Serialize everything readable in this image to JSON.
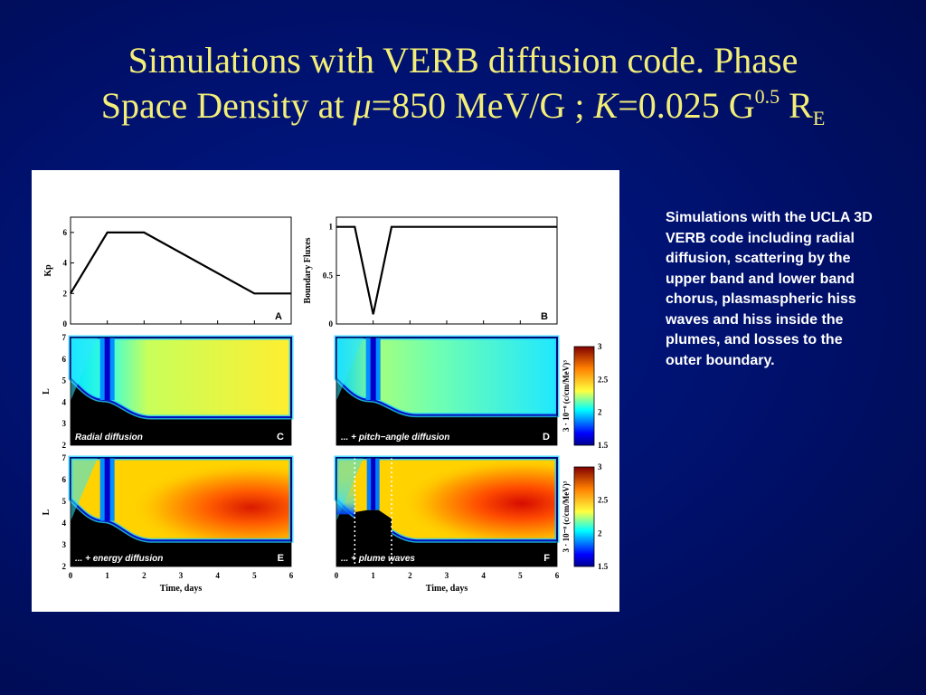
{
  "slide": {
    "title_line1": "Simulations with VERB diffusion code. Phase",
    "title_line2_pre": "Space Density  at ",
    "title_mu": "μ",
    "title_mid": "=850 MeV/G ; ",
    "title_k": "K",
    "title_post": "=0.025 G",
    "title_sup": "0.5",
    "title_r": " R",
    "title_sub": "E",
    "caption": "Simulations with the UCLA 3D VERB code including radial diffusion, scattering by the upper band and lower band chorus, plasmaspheric hiss waves and hiss inside the plumes, and losses to the outer boundary."
  },
  "chart_data": [
    {
      "id": "A",
      "type": "line",
      "panel_label": "A",
      "ylabel": "Kp",
      "xlim": [
        0,
        6
      ],
      "ylim": [
        0,
        7
      ],
      "yticks": [
        "0",
        "2",
        "4",
        "6"
      ],
      "x": [
        0,
        1,
        2,
        5,
        6
      ],
      "y": [
        2,
        6,
        6,
        2,
        2
      ]
    },
    {
      "id": "B",
      "type": "line",
      "panel_label": "B",
      "ylabel": "Boundary Fluxes",
      "xlim": [
        0,
        6
      ],
      "ylim": [
        0,
        1.1
      ],
      "yticks": [
        "0",
        "0.5",
        "1"
      ],
      "x": [
        0,
        0.5,
        1,
        1.5,
        6
      ],
      "y": [
        1,
        1,
        0.1,
        1,
        1
      ]
    },
    {
      "id": "C",
      "type": "heatmap",
      "panel_label": "C",
      "annotation": "Radial diffusion",
      "ylabel": "L",
      "xlim": [
        0,
        6
      ],
      "ylim": [
        2,
        7
      ],
      "yticks": [
        "2",
        "3",
        "4",
        "5",
        "6",
        "7"
      ]
    },
    {
      "id": "D",
      "type": "heatmap",
      "panel_label": "D",
      "annotation": "... + pitch−angle diffusion",
      "xlim": [
        0,
        6
      ],
      "ylim": [
        2,
        7
      ],
      "colorbar": {
        "label": "3 · 10⁻⁸ (c/cm/MeV)³",
        "ticks": [
          "1.5",
          "2",
          "2.5",
          "3"
        ]
      }
    },
    {
      "id": "E",
      "type": "heatmap",
      "panel_label": "E",
      "annotation": "... + energy diffusion",
      "ylabel": "L",
      "xlabel": "Time, days",
      "xlim": [
        0,
        6
      ],
      "ylim": [
        2,
        7
      ],
      "xticks": [
        "0",
        "1",
        "2",
        "3",
        "4",
        "5",
        "6"
      ],
      "yticks": [
        "2",
        "3",
        "4",
        "5",
        "6",
        "7"
      ]
    },
    {
      "id": "F",
      "type": "heatmap",
      "panel_label": "F",
      "annotation": "... + plume waves",
      "xlabel": "Time, days",
      "xlim": [
        0,
        6
      ],
      "ylim": [
        2,
        7
      ],
      "xticks": [
        "0",
        "1",
        "2",
        "3",
        "4",
        "5",
        "6"
      ],
      "colorbar": {
        "label": "3 · 10⁻⁸ (c/cm/MeV)³",
        "ticks": [
          "1.5",
          "2",
          "2.5",
          "3"
        ]
      }
    }
  ]
}
